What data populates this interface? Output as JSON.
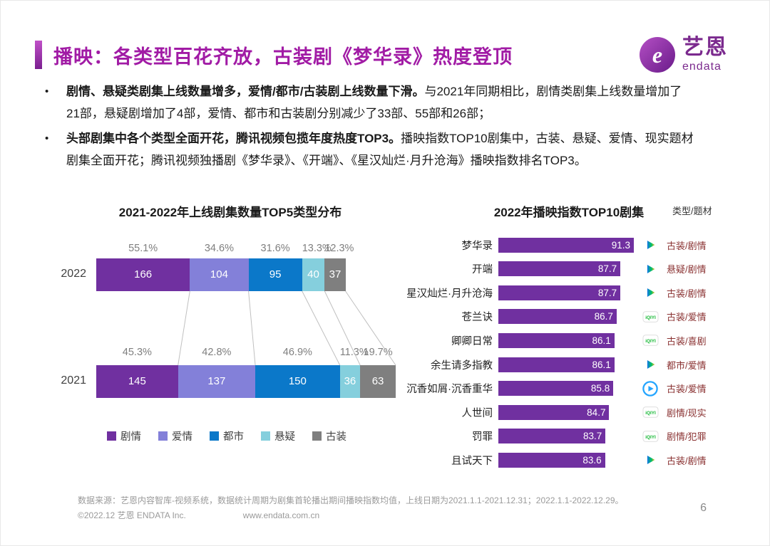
{
  "page": {
    "title": "播映：各类型百花齐放，古装剧《梦华录》热度登顶",
    "page_number": "6"
  },
  "logo": {
    "brand": "艺恩",
    "sub": "endata"
  },
  "bullets": [
    {
      "bold": "剧情、悬疑类剧集上线数量增多，爱情/都市/古装剧上线数量下滑。",
      "rest": "与2021年同期相比，剧情类剧集上线数量增加了21部，悬疑剧增加了4部，爱情、都市和古装剧分别减少了33部、55部和26部；"
    },
    {
      "bold": "头部剧集中各个类型全面开花，腾讯视频包揽年度热度TOP3。",
      "rest": "播映指数TOP10剧集中，古装、悬疑、爱情、现实题材剧集全面开花；腾讯视频独播剧《梦华录》、《开端》、《星汉灿烂·月升沧海》播映指数排名TOP3。"
    }
  ],
  "chart_data": [
    {
      "type": "bar",
      "subtype": "horizontal-stacked",
      "title": "2021-2022年上线剧集数量TOP5类型分布",
      "categories": [
        "2022",
        "2021"
      ],
      "series": [
        {
          "name": "剧情",
          "color": "#7030a0",
          "values": [
            166,
            145
          ],
          "pct": [
            "55.1%",
            "45.3%"
          ]
        },
        {
          "name": "爱情",
          "color": "#8380d9",
          "values": [
            104,
            137
          ],
          "pct": [
            "34.6%",
            "42.8%"
          ]
        },
        {
          "name": "都市",
          "color": "#0b78c9",
          "values": [
            95,
            150
          ],
          "pct": [
            "31.6%",
            "46.9%"
          ]
        },
        {
          "name": "悬疑",
          "color": "#85cfdd",
          "values": [
            40,
            36
          ],
          "pct": [
            "13.3%",
            "11.3%"
          ]
        },
        {
          "name": "古装",
          "color": "#7f7f7f",
          "values": [
            37,
            63
          ],
          "pct": [
            "12.3%",
            "19.7%"
          ]
        }
      ],
      "legend_position": "bottom"
    },
    {
      "type": "bar",
      "subtype": "horizontal-ranking",
      "title": "2022年播映指数TOP10剧集",
      "column_header": "类型/题材",
      "bar_color": "#7030a0",
      "items": [
        {
          "name": "梦华录",
          "value": 91.3,
          "platform": "tencent",
          "genre": "古装/剧情"
        },
        {
          "name": "开端",
          "value": 87.7,
          "platform": "tencent",
          "genre": "悬疑/剧情"
        },
        {
          "name": "星汉灿烂·月升沧海",
          "value": 87.7,
          "platform": "tencent",
          "genre": "古装/剧情"
        },
        {
          "name": "苍兰诀",
          "value": 86.7,
          "platform": "iqiyi",
          "genre": "古装/爱情"
        },
        {
          "name": "卿卿日常",
          "value": 86.1,
          "platform": "iqiyi",
          "genre": "古装/喜剧"
        },
        {
          "name": "余生请多指教",
          "value": 86.1,
          "platform": "tencent",
          "genre": "都市/爱情"
        },
        {
          "name": "沉香如屑·沉香重华",
          "value": 85.8,
          "platform": "youku",
          "genre": "古装/爱情"
        },
        {
          "name": "人世间",
          "value": 84.7,
          "platform": "iqiyi",
          "genre": "剧情/现实"
        },
        {
          "name": "罚罪",
          "value": 83.7,
          "platform": "iqiyi",
          "genre": "剧情/犯罪"
        },
        {
          "name": "且试天下",
          "value": 83.6,
          "platform": "tencent",
          "genre": "古装/剧情"
        }
      ]
    }
  ],
  "footer": {
    "source": "数据来源：艺恩内容智库-视频系统，数据统计周期为剧集首轮播出期间播映指数均值，上线日期为2021.1.1-2021.12.31；2022.1.1-2022.12.29。",
    "copyright": "©2022.12 艺恩 ENDATA Inc.",
    "website": "www.endata.com.cn"
  }
}
